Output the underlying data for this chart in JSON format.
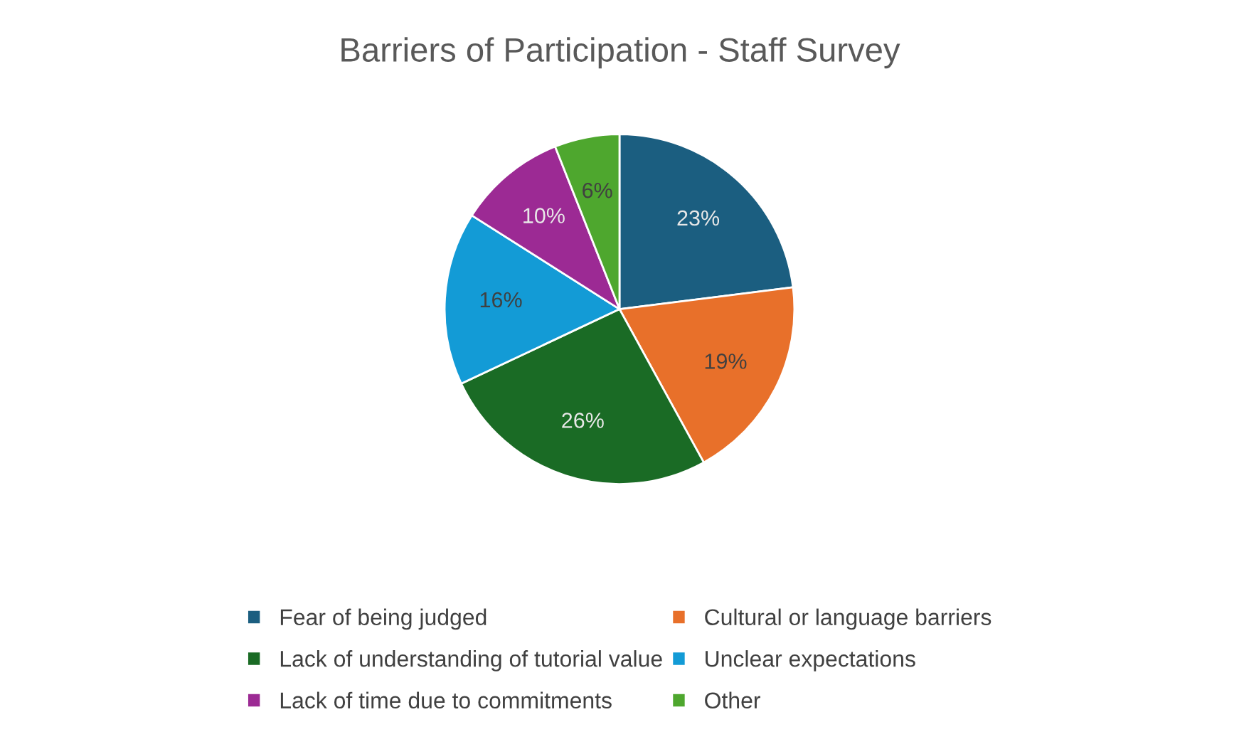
{
  "chart_data": {
    "type": "pie",
    "title": "Barriers of Participation - Staff Survey",
    "categories": [
      "Fear of being judged",
      "Cultural or language barriers",
      "Lack of understanding of tutorial value",
      "Unclear expectations",
      "Lack of time due to commitments",
      "Other"
    ],
    "values": [
      23,
      19,
      26,
      16,
      10,
      6
    ],
    "colors": [
      "#1b5e80",
      "#e8702a",
      "#1a6b25",
      "#139bd6",
      "#9c2a94",
      "#4ea72e"
    ],
    "value_labels": [
      "23%",
      "19%",
      "26%",
      "16%",
      "10%",
      "6%"
    ],
    "legend": "bottom"
  }
}
